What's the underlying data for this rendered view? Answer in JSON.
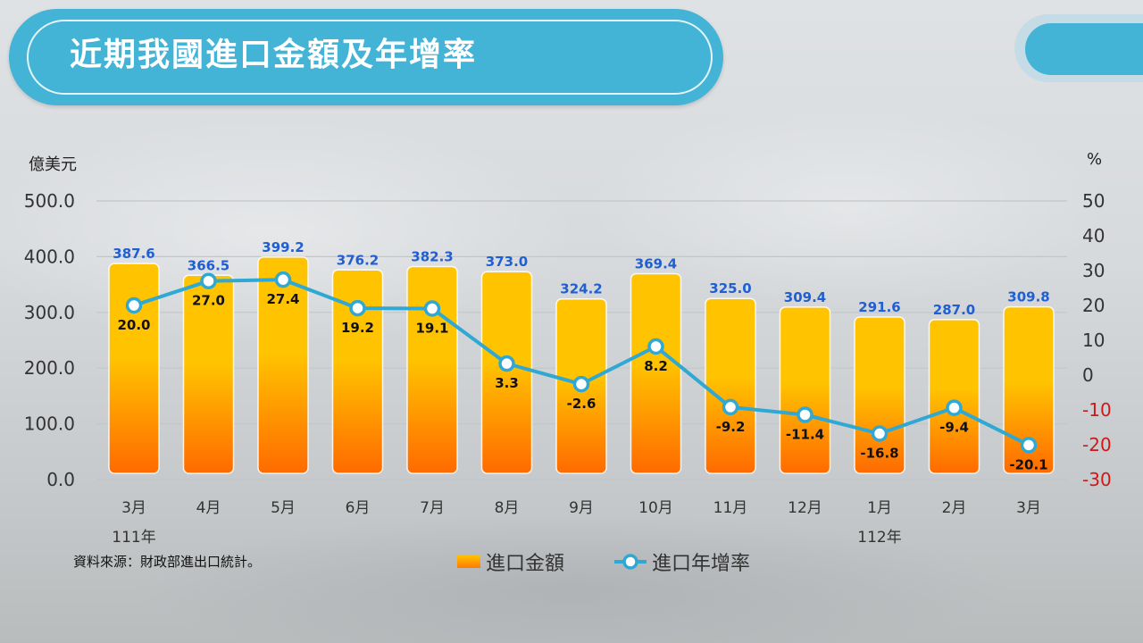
{
  "title": "近期我國進口金額及年增率",
  "left_unit": "億美元",
  "right_unit": "%",
  "source_note": "資料來源：財政部進出口統計。",
  "legend": {
    "bar_label": "進口金額",
    "line_label": "進口年增率"
  },
  "colors": {
    "title_bg": "#43b3d6",
    "bar_top": "#ffc300",
    "bar_bottom": "#ff6a00",
    "line": "#2fa8d3",
    "bar_label": "#1f5fd1",
    "negative_axis": "#d01818"
  },
  "chart_data": {
    "type": "bar+line",
    "categories": [
      "3月",
      "4月",
      "5月",
      "6月",
      "7月",
      "8月",
      "9月",
      "10月",
      "11月",
      "12月",
      "1月",
      "2月",
      "3月"
    ],
    "year_labels": [
      {
        "index": 0,
        "text": "111年"
      },
      {
        "index": 10,
        "text": "112年"
      }
    ],
    "series": [
      {
        "name": "進口金額",
        "type": "bar",
        "axis": "left",
        "values": [
          387.6,
          366.5,
          399.2,
          376.2,
          382.3,
          373.0,
          324.2,
          369.4,
          325.0,
          309.4,
          291.6,
          287.0,
          309.8
        ],
        "labels": [
          "387.6",
          "366.5",
          "399.2",
          "376.2",
          "382.3",
          "373.0",
          "324.2",
          "369.4",
          "325.0",
          "309.4",
          "291.6",
          "287.0",
          "309.8"
        ]
      },
      {
        "name": "進口年增率",
        "type": "line",
        "axis": "right",
        "values": [
          20.0,
          27.0,
          27.4,
          19.2,
          19.1,
          3.3,
          -2.6,
          8.2,
          -9.2,
          -11.4,
          -16.8,
          -9.4,
          -20.1
        ],
        "labels": [
          "20.0",
          "27.0",
          "27.4",
          "19.2",
          "19.1",
          "3.3",
          "-2.6",
          "8.2",
          "-9.2",
          "-11.4",
          "-16.8",
          "-9.4",
          "-20.1"
        ]
      }
    ],
    "y_left": {
      "min": 0,
      "max": 500,
      "ticks": [
        "0.0",
        "100.0",
        "200.0",
        "300.0",
        "400.0",
        "500.0"
      ]
    },
    "y_right": {
      "min": -30,
      "max": 50,
      "ticks": [
        "-30",
        "-20",
        "-10",
        "0",
        "10",
        "20",
        "30",
        "40",
        "50"
      ]
    },
    "grid": true,
    "legend_position": "bottom"
  }
}
